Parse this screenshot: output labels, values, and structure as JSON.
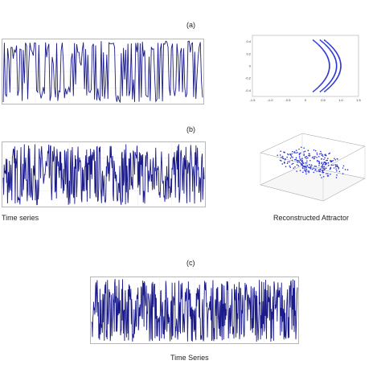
{
  "panels": {
    "a": {
      "label": "(a)"
    },
    "b": {
      "label": "(b)"
    },
    "c": {
      "label": "(c)"
    }
  },
  "captions": {
    "time_series_b": "Time series",
    "attractor_b": "Reconstructed Attractor",
    "time_series_c": "Time Series"
  },
  "colors": {
    "series": "#1b1b8a",
    "points": "#2b36d6",
    "frame": "#888888"
  },
  "chart_data": [
    {
      "id": "a-time-series",
      "type": "line",
      "description_level": "dense oscillating signal between two extremes",
      "y_range": [
        -1,
        1
      ],
      "n_points": 180,
      "grid": true
    },
    {
      "id": "a-attractor",
      "type": "scatter",
      "xticks": [
        "-1.5",
        "-1.0",
        "-0.5",
        "0",
        "0.5",
        "1.0",
        "1.5"
      ],
      "yticks": [
        "0.4",
        "0.2",
        "0",
        "-0.2",
        "-0.4"
      ],
      "xlim": [
        -1.5,
        1.5
      ],
      "ylim": [
        -0.5,
        0.5
      ],
      "shape": "parabolic arcs"
    },
    {
      "id": "b-time-series",
      "type": "line",
      "y_range": [
        -1,
        1
      ],
      "n_points": 420,
      "grid": true
    },
    {
      "id": "b-attractor",
      "type": "scatter",
      "projection": "3d",
      "shape": "cloud"
    },
    {
      "id": "c-time-series",
      "type": "line",
      "y_range": [
        -1,
        1
      ],
      "n_points": 520,
      "grid": true
    }
  ]
}
